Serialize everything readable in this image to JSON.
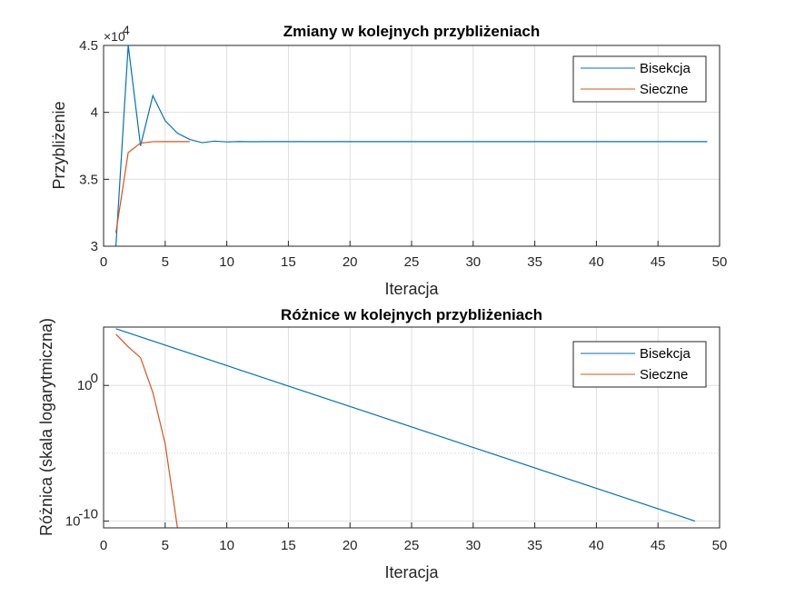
{
  "chart_data": [
    {
      "type": "line",
      "title": "Zmiany w kolejnych przybliżeniach",
      "xlabel": "Iteracja",
      "ylabel": "Przybliżenie",
      "xlim": [
        0,
        50
      ],
      "ylim": [
        30000,
        45000
      ],
      "xticks": [
        0,
        5,
        10,
        15,
        20,
        25,
        30,
        35,
        40,
        45,
        50
      ],
      "yticks": [
        30000,
        35000,
        40000,
        45000
      ],
      "ytick_labels": [
        "3",
        "3.5",
        "4",
        "4.5"
      ],
      "y_exponent_base": "×10",
      "y_exponent_power": "4",
      "grid": true,
      "legend": "top-right",
      "series": [
        {
          "name": "Bisekcja",
          "color": "#0072BD",
          "x": [
            1,
            2,
            3,
            4,
            5,
            6,
            7,
            8,
            9,
            10,
            11,
            12,
            13,
            14,
            15,
            16,
            17,
            18,
            19,
            20,
            21,
            22,
            23,
            24,
            25,
            26,
            27,
            28,
            29,
            30,
            31,
            32,
            33,
            34,
            35,
            36,
            37,
            38,
            39,
            40,
            41,
            42,
            43,
            44,
            45,
            46,
            47,
            48,
            49
          ],
          "y": [
            30000,
            45000,
            37500,
            41250,
            39375,
            38437.5,
            37968.75,
            37734.38,
            37851.56,
            37792.97,
            37822.27,
            37807.62,
            37814.94,
            37811.28,
            37813.11,
            37812.2,
            37812.66,
            37812.43,
            37812.54,
            37812.49,
            37812.51,
            37812.5,
            37812.5,
            37812.5,
            37812.5,
            37812.5,
            37812.5,
            37812.5,
            37812.5,
            37812.5,
            37812.5,
            37812.5,
            37812.5,
            37812.5,
            37812.5,
            37812.5,
            37812.5,
            37812.5,
            37812.5,
            37812.5,
            37812.5,
            37812.5,
            37812.5,
            37812.5,
            37812.5,
            37812.5,
            37812.5,
            37812.5,
            37812.5
          ]
        },
        {
          "name": "Sieczne",
          "color": "#D95319",
          "x": [
            1,
            2,
            3,
            4,
            5,
            6,
            7
          ],
          "y": [
            31000,
            37000,
            37700,
            37810,
            37812.5,
            37812.5,
            37812.5
          ]
        }
      ]
    },
    {
      "type": "line",
      "title": "Różnice w kolejnych przybliżeniach",
      "xlabel": "Iteracja",
      "ylabel": "Różnica (skala logarytmiczna)",
      "xlim": [
        0,
        50
      ],
      "ylim_log10": [
        -10.5,
        4.3
      ],
      "y_scale": "log",
      "xticks": [
        0,
        5,
        10,
        15,
        20,
        25,
        30,
        35,
        40,
        45,
        50
      ],
      "yticks_log10": [
        0,
        -10
      ],
      "ytick_base": "10",
      "ytick_powers": [
        "0",
        "-10"
      ],
      "grid": true,
      "minor_grid_log10": [
        -5
      ],
      "legend": "top-right",
      "series": [
        {
          "name": "Bisekcja",
          "color": "#0072BD",
          "x": [
            1,
            48
          ],
          "y": [
            15000,
            1e-10
          ]
        },
        {
          "name": "Sieczne",
          "color": "#D95319",
          "x": [
            1,
            2,
            3,
            4,
            5,
            6
          ],
          "y": [
            6000,
            700,
            110,
            0.3,
            5e-05,
            3e-11
          ]
        }
      ]
    }
  ]
}
